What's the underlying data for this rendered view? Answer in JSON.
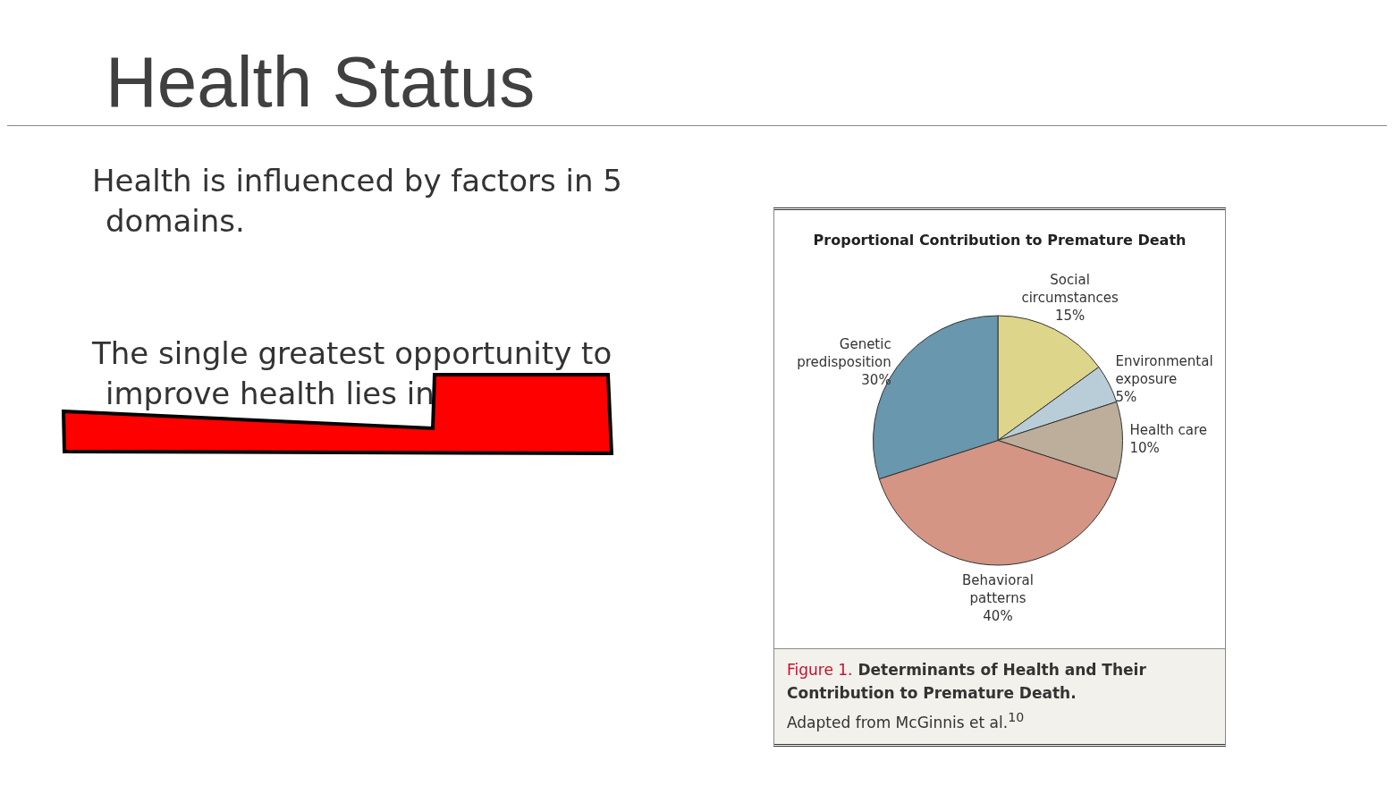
{
  "chart_data": {
    "type": "pie",
    "title": "Health Status",
    "subtitle": "Proportional Contribution to Premature Death",
    "categories": [
      "Social circumstances",
      "Environmental exposure",
      "Health care",
      "Behavioral patterns",
      "Genetic predisposition"
    ],
    "values": [
      15,
      5,
      10,
      40,
      30
    ],
    "value_labels": [
      "15%",
      "5%",
      "10%",
      "40%",
      "30%"
    ],
    "colors": [
      "#ddd58a",
      "#b8cdd8",
      "#bcae9a",
      "#d49584",
      "#6997ad"
    ],
    "legend": false,
    "annotations": [
      "Health is influenced by factors in 5 domains.",
      "The single greatest opportunity to improve health lies in",
      "Figure 1.",
      "Determinants of Health and Their Contribution to Premature Death.",
      "Adapted from McGinnis et al.$^{10}$"
    ]
  }
}
